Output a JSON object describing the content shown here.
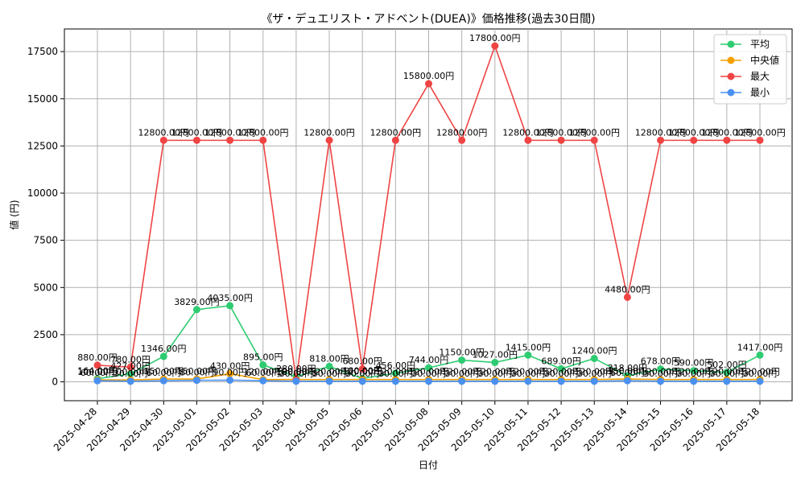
{
  "chart_data": {
    "type": "line",
    "title": "《ザ・デュエリスト・アドベント(DUEA)》価格推移(過去30日間)",
    "xlabel": "日付",
    "ylabel": "値 (円)",
    "ylim": [
      -1000,
      18700
    ],
    "yticks": [
      0,
      2500,
      5000,
      7500,
      10000,
      12500,
      15000,
      17500
    ],
    "grid": true,
    "legend_position": "top-right",
    "categories": [
      "2025-04-28",
      "2025-04-29",
      "2025-04-30",
      "2025-05-01",
      "2025-05-02",
      "2025-05-03",
      "2025-05-04",
      "2025-05-05",
      "2025-05-06",
      "2025-05-07",
      "2025-05-08",
      "2025-05-09",
      "2025-05-10",
      "2025-05-11",
      "2025-05-12",
      "2025-05-13",
      "2025-05-14",
      "2025-05-15",
      "2025-05-16",
      "2025-05-17",
      "2025-05-18"
    ],
    "series": [
      {
        "name": "平均",
        "color": "#2ecc71",
        "values": [
          164,
          427,
          1346,
          3829,
          4035,
          895,
          280,
          818,
          180,
          456,
          744,
          1150,
          1027,
          1415,
          689,
          1240,
          318,
          678,
          590,
          502,
          1417
        ],
        "labels": [
          "164.00円",
          "427.00円",
          "1346.00円",
          "3829.00円",
          "4035.00円",
          "895.00円",
          "280.00円",
          "818.00円",
          "180.00円",
          "456.00円",
          "744.00円",
          "1150.00円",
          "1027.00円",
          "1415.00円",
          "689.00円",
          "1240.00円",
          "318.00円",
          "678.00円",
          "590.00円",
          "502.00円",
          "1417.00円"
        ]
      },
      {
        "name": "中央値",
        "color": "#f5a000",
        "values": [
          100,
          100,
          150,
          150,
          430,
          120,
          120,
          120,
          120,
          120,
          120,
          120,
          120,
          120,
          120,
          120,
          150,
          120,
          120,
          120,
          120
        ],
        "labels": [
          "100.00円",
          "100.00円",
          "150.00円",
          "150.00円",
          "430.00円",
          "120.00円",
          "120.00円",
          "120.00円",
          "120.00円",
          "120.00円",
          "120.00円",
          "120.00円",
          "120.00円",
          "120.00円",
          "120.00円",
          "120.00円",
          "150.00円",
          "120.00円",
          "120.00円",
          "120.00円",
          "120.00円"
        ]
      },
      {
        "name": "最大",
        "color": "#f04444",
        "values": [
          880,
          780,
          12800,
          12800,
          12800,
          12800,
          100,
          12800,
          680,
          12800,
          15800,
          12800,
          17800,
          12800,
          12800,
          12800,
          4480,
          12800,
          12800,
          12800,
          12800
        ],
        "labels": [
          "880.00円",
          "780.00円",
          "12800.00円",
          "12800.00円",
          "12800.00円",
          "12800.00円",
          "100.00円",
          "12800.00円",
          "680.00円",
          "12800.00円",
          "15800.00円",
          "12800.00円",
          "17800.00円",
          "12800.00円",
          "12800.00円",
          "12800.00円",
          "4480.00円",
          "12800.00円",
          "12800.00円",
          "12800.00円",
          "12800.00円"
        ]
      },
      {
        "name": "最小",
        "color": "#4a90f0",
        "values": [
          60,
          30,
          60,
          80,
          90,
          60,
          30,
          30,
          30,
          30,
          30,
          30,
          30,
          30,
          30,
          30,
          60,
          30,
          30,
          30,
          30
        ],
        "labels": [
          "60.00円",
          "30.00円",
          "60.00円",
          "80.00円",
          "90.00円",
          "60.00円",
          "30.00円",
          "30.00円",
          "30.00円",
          "30.00円",
          "30.00円",
          "30.00円",
          "30.00円",
          "30.00円",
          "30.00円",
          "30.00円",
          "60.00円",
          "30.00円",
          "30.00円",
          "30.00円",
          "30.00円"
        ]
      }
    ]
  }
}
